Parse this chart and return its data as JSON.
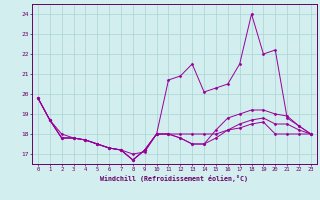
{
  "x": [
    0,
    1,
    2,
    3,
    4,
    5,
    6,
    7,
    8,
    9,
    10,
    11,
    12,
    13,
    14,
    15,
    16,
    17,
    18,
    19,
    20,
    21,
    22,
    23
  ],
  "line1": [
    19.8,
    18.7,
    18.0,
    17.8,
    17.7,
    17.5,
    17.3,
    17.2,
    17.0,
    17.1,
    18.0,
    18.0,
    18.0,
    18.0,
    18.0,
    18.0,
    18.2,
    18.3,
    18.5,
    18.6,
    18.0,
    18.0,
    18.0,
    18.0
  ],
  "line2": [
    19.8,
    18.7,
    17.8,
    17.8,
    17.7,
    17.5,
    17.3,
    17.2,
    16.7,
    17.2,
    18.0,
    20.7,
    20.9,
    21.5,
    20.1,
    20.3,
    20.5,
    21.5,
    24.0,
    22.0,
    22.2,
    18.8,
    18.4,
    18.0
  ],
  "line3": [
    19.8,
    18.7,
    17.8,
    17.8,
    17.7,
    17.5,
    17.3,
    17.2,
    16.7,
    17.2,
    18.0,
    18.0,
    17.8,
    17.5,
    17.5,
    18.2,
    18.8,
    19.0,
    19.2,
    19.2,
    19.0,
    18.9,
    18.4,
    18.0
  ],
  "line4": [
    19.8,
    18.7,
    17.8,
    17.8,
    17.7,
    17.5,
    17.3,
    17.2,
    16.7,
    17.2,
    18.0,
    18.0,
    17.8,
    17.5,
    17.5,
    17.8,
    18.2,
    18.5,
    18.7,
    18.8,
    18.5,
    18.5,
    18.2,
    18.0
  ],
  "line_color": "#990099",
  "bg_color": "#d2eeee",
  "grid_color": "#aad4d4",
  "axis_color": "#660066",
  "xlabel": "Windchill (Refroidissement éolien,°C)",
  "ylim": [
    16.5,
    24.5
  ],
  "xlim": [
    -0.5,
    23.5
  ],
  "yticks": [
    17,
    18,
    19,
    20,
    21,
    22,
    23,
    24
  ],
  "xticks": [
    0,
    1,
    2,
    3,
    4,
    5,
    6,
    7,
    8,
    9,
    10,
    11,
    12,
    13,
    14,
    15,
    16,
    17,
    18,
    19,
    20,
    21,
    22,
    23
  ]
}
